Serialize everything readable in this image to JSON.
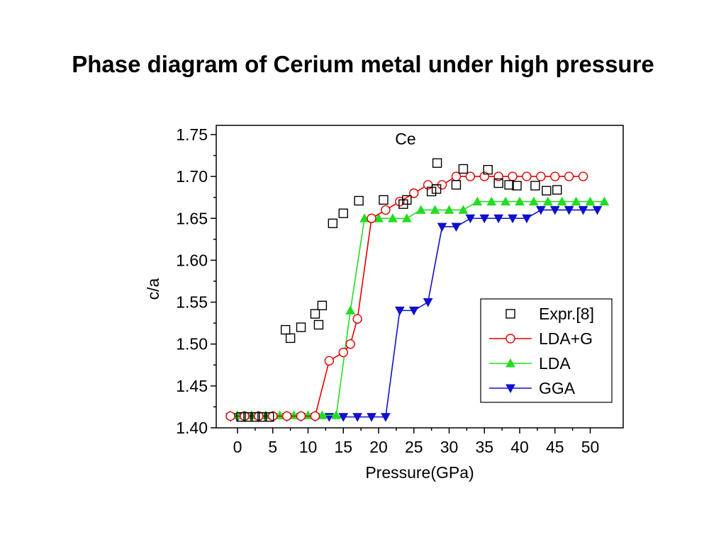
{
  "slide": {
    "title": "Phase diagram of Cerium metal under high pressure"
  },
  "chart_data": {
    "type": "scatter",
    "annotation": "Ce",
    "xlabel": "Pressure(GPa)",
    "ylabel": "c/a",
    "xlim": [
      -2,
      54
    ],
    "ylim": [
      1.4,
      1.75
    ],
    "xticks": [
      "0",
      "5",
      "10",
      "15",
      "20",
      "25",
      "30",
      "35",
      "40",
      "45",
      "50"
    ],
    "yticks": [
      "1.40",
      "1.45",
      "1.50",
      "1.55",
      "1.60",
      "1.65",
      "1.70",
      "1.75"
    ],
    "legend_position": "lower-right",
    "grid": false,
    "series": [
      {
        "name": "Expr.[8]",
        "color": "#000000",
        "marker": "square",
        "line": false,
        "points": [
          [
            0.5,
            1.413
          ],
          [
            1.5,
            1.413
          ],
          [
            2.5,
            1.413
          ],
          [
            3.5,
            1.413
          ],
          [
            4.5,
            1.413
          ],
          [
            6.8,
            1.517
          ],
          [
            7.5,
            1.507
          ],
          [
            9.0,
            1.52
          ],
          [
            11.0,
            1.536
          ],
          [
            11.5,
            1.523
          ],
          [
            12.0,
            1.546
          ],
          [
            13.5,
            1.644
          ],
          [
            15.0,
            1.656
          ],
          [
            17.2,
            1.671
          ],
          [
            20.7,
            1.672
          ],
          [
            23.5,
            1.667
          ],
          [
            24.0,
            1.672
          ],
          [
            27.5,
            1.682
          ],
          [
            28.2,
            1.685
          ],
          [
            28.3,
            1.716
          ],
          [
            31.0,
            1.69
          ],
          [
            32.0,
            1.709
          ],
          [
            35.5,
            1.708
          ],
          [
            37.0,
            1.692
          ],
          [
            38.5,
            1.69
          ],
          [
            39.6,
            1.689
          ],
          [
            42.2,
            1.689
          ],
          [
            43.8,
            1.683
          ],
          [
            45.3,
            1.684
          ]
        ]
      },
      {
        "name": "LDA+G",
        "color": "#e00000",
        "marker": "circle",
        "line": true,
        "points": [
          [
            -1,
            1.414
          ],
          [
            1,
            1.414
          ],
          [
            3,
            1.414
          ],
          [
            5,
            1.414
          ],
          [
            7,
            1.414
          ],
          [
            9,
            1.414
          ],
          [
            11,
            1.414
          ],
          [
            13,
            1.48
          ],
          [
            15,
            1.49
          ],
          [
            16,
            1.5
          ],
          [
            17,
            1.53
          ],
          [
            19,
            1.65
          ],
          [
            21,
            1.66
          ],
          [
            23,
            1.67
          ],
          [
            25,
            1.68
          ],
          [
            27,
            1.69
          ],
          [
            29,
            1.69
          ],
          [
            31,
            1.7
          ],
          [
            33,
            1.7
          ],
          [
            35,
            1.7
          ],
          [
            37,
            1.7
          ],
          [
            39,
            1.7
          ],
          [
            41,
            1.7
          ],
          [
            43,
            1.7
          ],
          [
            45,
            1.7
          ],
          [
            47,
            1.7
          ],
          [
            49,
            1.7
          ]
        ]
      },
      {
        "name": "LDA",
        "color": "#22dd22",
        "marker": "triangle-up",
        "line": true,
        "points": [
          [
            -1,
            1.415
          ],
          [
            0,
            1.415
          ],
          [
            1,
            1.415
          ],
          [
            2,
            1.415
          ],
          [
            3,
            1.415
          ],
          [
            4,
            1.415
          ],
          [
            5,
            1.415
          ],
          [
            6,
            1.415
          ],
          [
            7,
            1.415
          ],
          [
            8,
            1.415
          ],
          [
            9,
            1.415
          ],
          [
            10,
            1.415
          ],
          [
            11,
            1.415
          ],
          [
            12,
            1.415
          ],
          [
            14,
            1.415
          ],
          [
            16,
            1.54
          ],
          [
            18,
            1.65
          ],
          [
            20,
            1.65
          ],
          [
            22,
            1.65
          ],
          [
            24,
            1.65
          ],
          [
            26,
            1.66
          ],
          [
            28,
            1.66
          ],
          [
            30,
            1.66
          ],
          [
            32,
            1.66
          ],
          [
            34,
            1.67
          ],
          [
            36,
            1.67
          ],
          [
            38,
            1.67
          ],
          [
            40,
            1.67
          ],
          [
            42,
            1.67
          ],
          [
            44,
            1.67
          ],
          [
            46,
            1.67
          ],
          [
            48,
            1.67
          ],
          [
            50,
            1.67
          ],
          [
            52,
            1.67
          ]
        ]
      },
      {
        "name": "GGA",
        "color": "#1010cc",
        "marker": "triangle-down",
        "line": true,
        "points": [
          [
            -1,
            1.413
          ],
          [
            0,
            1.413
          ],
          [
            1,
            1.413
          ],
          [
            3,
            1.413
          ],
          [
            5,
            1.413
          ],
          [
            7,
            1.413
          ],
          [
            9,
            1.413
          ],
          [
            11,
            1.413
          ],
          [
            13,
            1.413
          ],
          [
            15,
            1.413
          ],
          [
            17,
            1.413
          ],
          [
            19,
            1.413
          ],
          [
            21,
            1.413
          ],
          [
            23,
            1.54
          ],
          [
            25,
            1.54
          ],
          [
            27,
            1.55
          ],
          [
            29,
            1.64
          ],
          [
            31,
            1.64
          ],
          [
            33,
            1.65
          ],
          [
            35,
            1.65
          ],
          [
            37,
            1.65
          ],
          [
            39,
            1.65
          ],
          [
            41,
            1.65
          ],
          [
            43,
            1.66
          ],
          [
            45,
            1.66
          ],
          [
            47,
            1.66
          ],
          [
            49,
            1.66
          ],
          [
            51,
            1.66
          ]
        ]
      }
    ]
  }
}
